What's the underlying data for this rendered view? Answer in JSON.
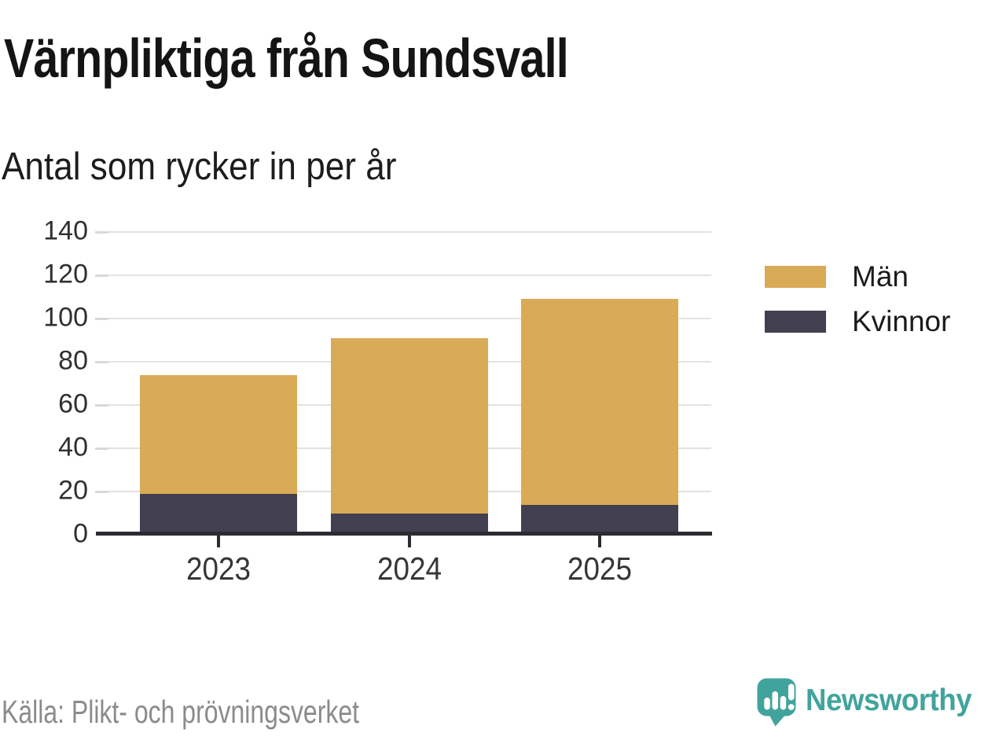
{
  "title": "Värnpliktiga från Sundsvall",
  "subtitle": "Antal som rycker in per år",
  "source": "Källa: Plikt- och prövningsverket",
  "brand": {
    "name": "Newsworthy",
    "icon": "newsworthy-logo-icon",
    "color": "#41a49c"
  },
  "chart_data": {
    "type": "bar",
    "stacked": true,
    "title": "Värnpliktiga från Sundsvall",
    "subtitle": "Antal som rycker in per år",
    "categories": [
      "2023",
      "2024",
      "2025"
    ],
    "series": [
      {
        "name": "Kvinnor",
        "color": "#413f50",
        "values": [
          19,
          10,
          14
        ]
      },
      {
        "name": "Män",
        "color": "#d9ab56",
        "values": [
          55,
          81,
          95
        ]
      }
    ],
    "stack_totals": [
      74,
      91,
      109
    ],
    "yticks": [
      0,
      20,
      40,
      60,
      80,
      100,
      120,
      140
    ],
    "ylim": [
      0,
      140
    ],
    "grid": "horizontal",
    "legend_order": [
      "Män",
      "Kvinnor"
    ],
    "legend_position": "right-top"
  }
}
